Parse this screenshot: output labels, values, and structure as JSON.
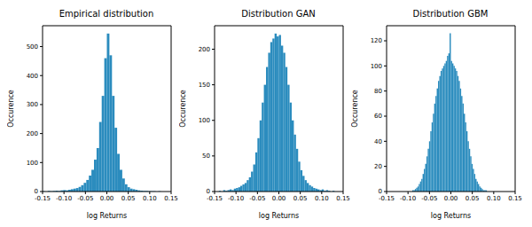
{
  "chart_data": [
    {
      "type": "histogram",
      "title": "Empirical distribution",
      "x_label": "log Returns",
      "y_label": "Occurence",
      "color": "#2b8cbe",
      "bins": [
        -0.15,
        -0.144,
        -0.138,
        -0.132,
        -0.126,
        -0.12,
        -0.114,
        -0.108,
        -0.102,
        -0.096,
        -0.09,
        -0.084,
        -0.078,
        -0.072,
        -0.066,
        -0.06,
        -0.054,
        -0.048,
        -0.042,
        -0.036,
        -0.03,
        -0.024,
        -0.018,
        -0.012,
        -0.006,
        0,
        0.006,
        0.012,
        0.018,
        0.024,
        0.03,
        0.036,
        0.042,
        0.048,
        0.054,
        0.06,
        0.066,
        0.072,
        0.078,
        0.084,
        0.09,
        0.096,
        0.102,
        0.108,
        0.114,
        0.12,
        0.126,
        0.132,
        0.138,
        0.144,
        0.15
      ],
      "values": [
        1,
        0,
        2,
        1,
        2,
        3,
        2,
        4,
        5,
        4,
        6,
        8,
        10,
        12,
        16,
        22,
        30,
        40,
        55,
        75,
        110,
        150,
        240,
        330,
        460,
        545,
        470,
        330,
        220,
        130,
        75,
        45,
        25,
        15,
        10,
        8,
        6,
        4,
        3,
        2,
        2,
        1,
        1,
        1,
        0,
        1,
        0,
        0,
        0,
        0
      ],
      "xlim": [
        -0.15,
        0.15
      ],
      "xticks": [
        {
          "value": -0.15,
          "label": "-0.15"
        },
        {
          "value": -0.1,
          "label": "-0.10"
        },
        {
          "value": -0.05,
          "label": "-0.05"
        },
        {
          "value": 0,
          "label": "0.00"
        },
        {
          "value": 0.05,
          "label": "0.05"
        },
        {
          "value": 0.1,
          "label": "0.10"
        },
        {
          "value": 0.15,
          "label": "0.15"
        }
      ],
      "ylim": [
        0,
        572
      ],
      "yticks": [
        0,
        100,
        200,
        300,
        400,
        500
      ]
    },
    {
      "type": "histogram",
      "title": "Distribution GAN",
      "x_label": "log Returns",
      "y_label": "Occurence",
      "color": "#2b8cbe",
      "bins": [
        -0.14,
        -0.135,
        -0.13,
        -0.125,
        -0.12,
        -0.115,
        -0.11,
        -0.105,
        -0.1,
        -0.095,
        -0.09,
        -0.085,
        -0.08,
        -0.075,
        -0.07,
        -0.065,
        -0.06,
        -0.055,
        -0.05,
        -0.045,
        -0.04,
        -0.035,
        -0.03,
        -0.025,
        -0.02,
        -0.015,
        -0.01,
        -0.005,
        0,
        0.005,
        0.01,
        0.015,
        0.02,
        0.025,
        0.03,
        0.035,
        0.04,
        0.045,
        0.05,
        0.055,
        0.06,
        0.065,
        0.07,
        0.075,
        0.08,
        0.085,
        0.09,
        0.095,
        0.1,
        0.105,
        0.11,
        0.115,
        0.12,
        0.125,
        0.13,
        0.135,
        0.14
      ],
      "values": [
        1,
        0,
        2,
        1,
        2,
        3,
        2,
        4,
        5,
        6,
        8,
        10,
        12,
        16,
        20,
        28,
        38,
        55,
        75,
        100,
        125,
        150,
        175,
        195,
        210,
        215,
        222,
        218,
        220,
        205,
        195,
        175,
        150,
        125,
        100,
        80,
        60,
        42,
        30,
        22,
        16,
        12,
        9,
        7,
        5,
        4,
        3,
        2,
        3,
        1,
        2,
        1,
        0,
        1,
        0,
        0
      ],
      "xlim": [
        -0.15,
        0.15
      ],
      "xticks": [
        {
          "value": -0.15,
          "label": "-0.15"
        },
        {
          "value": -0.1,
          "label": "-0.10"
        },
        {
          "value": -0.05,
          "label": "-0.05"
        },
        {
          "value": 0,
          "label": "0.00"
        },
        {
          "value": 0.05,
          "label": "0.05"
        },
        {
          "value": 0.1,
          "label": "0.10"
        },
        {
          "value": 0.15,
          "label": "0.15"
        }
      ],
      "ylim": [
        0,
        233
      ],
      "yticks": [
        0,
        50,
        100,
        150,
        200
      ]
    },
    {
      "type": "histogram",
      "title": "Distribution GBM",
      "x_label": "log Returns",
      "y_label": "Occurence",
      "color": "#2b8cbe",
      "bins": [
        -0.09,
        -0.087,
        -0.084,
        -0.081,
        -0.078,
        -0.075,
        -0.072,
        -0.069,
        -0.066,
        -0.063,
        -0.06,
        -0.057,
        -0.054,
        -0.051,
        -0.048,
        -0.045,
        -0.042,
        -0.039,
        -0.036,
        -0.033,
        -0.03,
        -0.027,
        -0.024,
        -0.021,
        -0.018,
        -0.015,
        -0.012,
        -0.009,
        -0.006,
        -0.003,
        0,
        0.003,
        0.006,
        0.009,
        0.012,
        0.015,
        0.018,
        0.021,
        0.024,
        0.027,
        0.03,
        0.033,
        0.036,
        0.039,
        0.042,
        0.045,
        0.048,
        0.051,
        0.054,
        0.057,
        0.06,
        0.063,
        0.066,
        0.069,
        0.072,
        0.075,
        0.078,
        0.081,
        0.084,
        0.087,
        0.09
      ],
      "values": [
        1,
        1,
        2,
        3,
        4,
        6,
        8,
        10,
        14,
        18,
        22,
        28,
        34,
        40,
        48,
        55,
        62,
        70,
        76,
        82,
        88,
        92,
        96,
        98,
        100,
        102,
        104,
        108,
        110,
        126,
        104,
        102,
        100,
        98,
        96,
        92,
        88,
        82,
        76,
        70,
        62,
        55,
        48,
        40,
        34,
        28,
        22,
        18,
        14,
        10,
        8,
        6,
        4,
        3,
        2,
        1,
        1,
        1,
        0,
        0
      ],
      "xlim": [
        -0.15,
        0.15
      ],
      "xticks": [
        {
          "value": -0.15,
          "label": "-0.15"
        },
        {
          "value": -0.1,
          "label": "-0.10"
        },
        {
          "value": -0.05,
          "label": "-0.05"
        },
        {
          "value": 0,
          "label": "0.00"
        },
        {
          "value": 0.05,
          "label": "0.05"
        },
        {
          "value": 0.1,
          "label": "0.10"
        },
        {
          "value": 0.15,
          "label": "0.15"
        }
      ],
      "ylim": [
        0,
        132
      ],
      "yticks": [
        0,
        20,
        40,
        60,
        80,
        100,
        120
      ]
    }
  ]
}
